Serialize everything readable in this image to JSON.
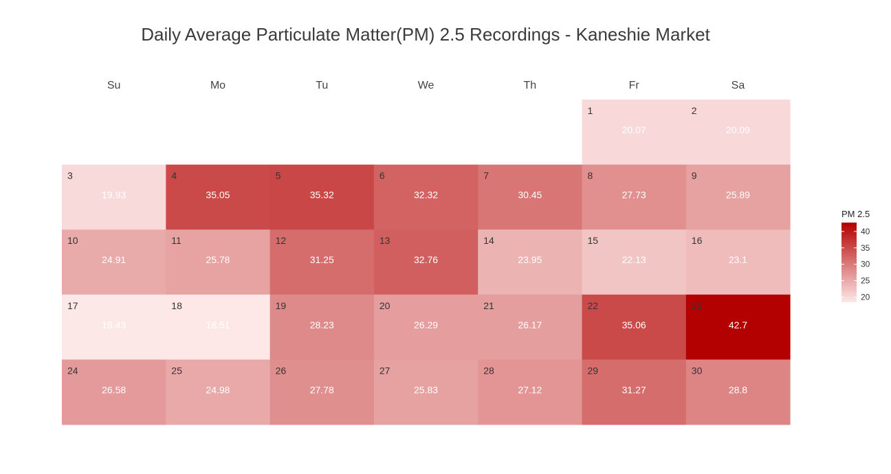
{
  "chart_data": {
    "type": "heatmap",
    "title": "Daily Average Particulate Matter(PM) 2.5 Recordings - Kaneshie Market",
    "weekdays": [
      "Su",
      "Mo",
      "Tu",
      "We",
      "Th",
      "Fr",
      "Sa"
    ],
    "first_weekday_index": 5,
    "days": [
      1,
      2,
      3,
      4,
      5,
      6,
      7,
      8,
      9,
      10,
      11,
      12,
      13,
      14,
      15,
      16,
      17,
      18,
      19,
      20,
      21,
      22,
      23,
      24,
      25,
      26,
      27,
      28,
      29,
      30
    ],
    "values": [
      20.07,
      20.09,
      19.93,
      35.05,
      35.32,
      32.32,
      30.45,
      27.73,
      25.89,
      24.91,
      25.78,
      31.25,
      32.76,
      23.95,
      22.13,
      23.1,
      18.43,
      18.51,
      28.23,
      26.29,
      26.17,
      35.06,
      42.7,
      26.58,
      24.98,
      27.78,
      25.83,
      27.12,
      31.27,
      28.8
    ],
    "value_labels": [
      "20.07",
      "20.09",
      "19.93",
      "35.05",
      "35.32",
      "32.32",
      "30.45",
      "27.73",
      "25.89",
      "24.91",
      "25.78",
      "31.25",
      "32.76",
      "23.95",
      "22.13",
      "23.1",
      "18.43",
      "18.51",
      "28.23",
      "26.29",
      "26.17",
      "35.06",
      "42.7",
      "26.58",
      "24.98",
      "27.78",
      "25.83",
      "27.12",
      "31.27",
      "28.8"
    ],
    "legend": {
      "title": "PM 2.5",
      "ticks": [
        20,
        25,
        30,
        35,
        40
      ],
      "range": [
        18.43,
        42.7
      ],
      "placement": "right"
    },
    "colors": {
      "low": "#fde8e8",
      "high": "#b30000"
    }
  }
}
